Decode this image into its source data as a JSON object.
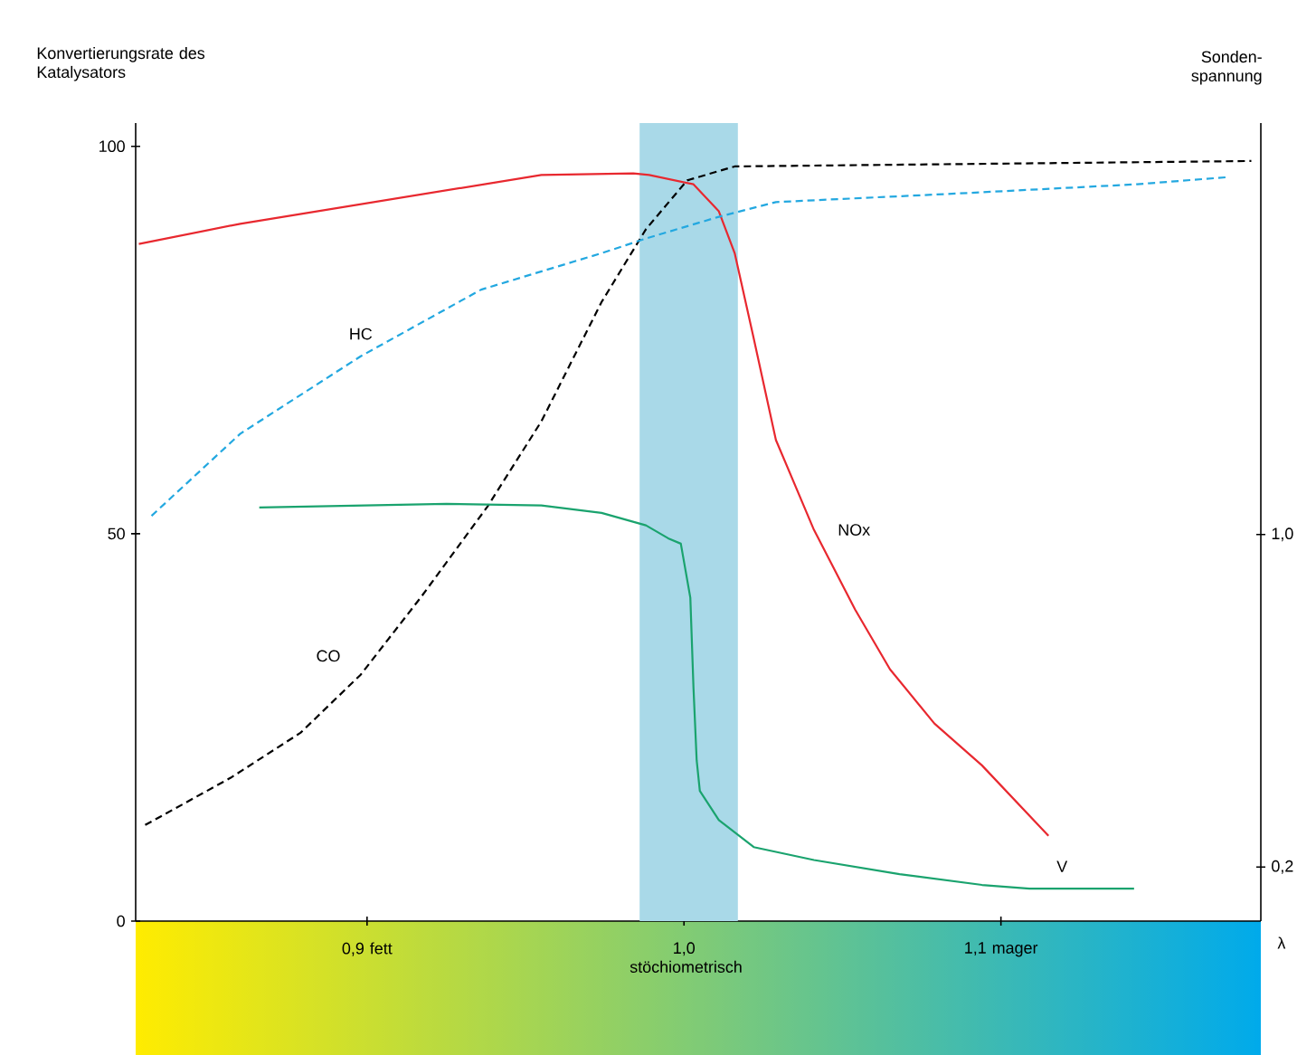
{
  "chart_data": {
    "type": "line",
    "ylabel": "Konvertierungsrate des Katalysators",
    "y2label": "Sonden-spannung",
    "xlabel": "λ",
    "xlim": [
      0.827,
      1.182
    ],
    "xticks": [
      {
        "value": 0.9,
        "label": "0,9 fett"
      },
      {
        "value": 1.0,
        "label": "1,0 stöchiometrisch"
      },
      {
        "value": 1.1,
        "label": "1,1 mager"
      }
    ],
    "ylim": [
      0,
      103
    ],
    "yticks": [
      0,
      50,
      100
    ],
    "y2lim": [
      0.07,
      1.99
    ],
    "y2ticks": [
      {
        "value": 0.2,
        "label": "0,2"
      },
      {
        "value": 1.0,
        "label": "1,0"
      }
    ],
    "bands": [
      {
        "axis": "x",
        "from": 0.986,
        "to": 1.017,
        "color": "#a9d9e8"
      }
    ],
    "series": [
      {
        "name": "NOx",
        "color": "#e8282f",
        "line_style": "solid",
        "x": [
          0.828,
          0.86,
          0.955,
          0.984,
          0.989,
          1.003,
          1.011,
          1.016,
          1.022,
          1.029,
          1.041,
          1.054,
          1.065,
          1.079,
          1.094,
          1.115
        ],
        "values": [
          87.4,
          90,
          96.3,
          96.5,
          96.3,
          95.1,
          91.6,
          86.2,
          75.2,
          62.1,
          50.5,
          40.2,
          32.5,
          25.5,
          20.1,
          11.0
        ]
      },
      {
        "name": "CO",
        "color": "#000000",
        "line_style": "dashed",
        "x": [
          0.83,
          0.857,
          0.879,
          0.898,
          0.917,
          0.938,
          0.955,
          0.974,
          0.988,
          1.001,
          1.016,
          1.179
        ],
        "values": [
          12.4,
          18.5,
          24.3,
          31.8,
          41.8,
          53.5,
          64.5,
          79.9,
          89.3,
          95.6,
          97.4,
          98.1
        ]
      },
      {
        "name": "HC",
        "color": "#23a8e0",
        "line_style": "dashed",
        "x": [
          0.832,
          0.86,
          0.898,
          0.936,
          0.974,
          0.988,
          1.011,
          1.029,
          1.086,
          1.143,
          1.171
        ],
        "values": [
          52.3,
          62.9,
          72.9,
          81.5,
          86.2,
          88.1,
          90.9,
          92.8,
          93.9,
          95.1,
          96.0
        ]
      },
      {
        "name": "V",
        "color": "#1aa36e",
        "line_style": "solid",
        "axis": "y2",
        "x": [
          0.866,
          0.925,
          0.955,
          0.974,
          0.988,
          0.995,
          0.999,
          1.002,
          1.003,
          1.004,
          1.005,
          1.011,
          1.022,
          1.041,
          1.068,
          1.094,
          1.109,
          1.142
        ],
        "values": [
          1.065,
          1.074,
          1.07,
          1.052,
          1.022,
          0.991,
          0.978,
          0.848,
          0.63,
          0.457,
          0.383,
          0.313,
          0.248,
          0.217,
          0.183,
          0.157,
          0.148,
          0.148
        ]
      }
    ]
  }
}
